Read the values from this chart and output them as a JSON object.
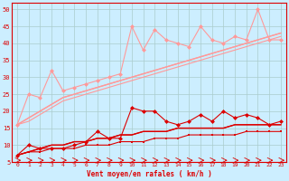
{
  "xlabel": "Vent moyen/en rafales ( km/h )",
  "background_color": "#cceeff",
  "grid_color": "#aacccc",
  "x": [
    0,
    1,
    2,
    3,
    4,
    5,
    6,
    7,
    8,
    9,
    10,
    11,
    12,
    13,
    14,
    15,
    16,
    17,
    18,
    19,
    20,
    21,
    22,
    23
  ],
  "pink_color": "#ff9999",
  "red_color": "#dd0000",
  "line_upper_jagged": [
    16,
    25,
    24,
    32,
    26,
    27,
    28,
    29,
    30,
    31,
    45,
    38,
    44,
    41,
    40,
    39,
    45,
    41,
    40,
    42,
    41,
    50,
    41,
    41
  ],
  "line_upper_smooth1": [
    16,
    18,
    20,
    22,
    24,
    25,
    26,
    27,
    28,
    29,
    30,
    31,
    32,
    33,
    34,
    35,
    36,
    37,
    38,
    39,
    40,
    41,
    42,
    43
  ],
  "line_upper_smooth2": [
    16,
    18,
    20,
    22,
    24,
    25,
    26,
    27,
    28,
    29,
    30,
    31,
    32,
    33,
    34,
    35,
    36,
    37,
    38,
    39,
    40,
    41,
    42,
    43
  ],
  "line_upper_smooth3": [
    16,
    17,
    19,
    21,
    23,
    24,
    25,
    26,
    27,
    28,
    29,
    30,
    31,
    32,
    33,
    34,
    35,
    36,
    37,
    38,
    39,
    40,
    41,
    42
  ],
  "line_lower_jagged": [
    7,
    10,
    9,
    9,
    9,
    10,
    11,
    14,
    12,
    12,
    21,
    20,
    20,
    17,
    16,
    17,
    19,
    17,
    20,
    18,
    19,
    18,
    16,
    17
  ],
  "line_lower_smooth1": [
    7,
    8,
    9,
    10,
    10,
    11,
    11,
    12,
    12,
    13,
    13,
    14,
    14,
    14,
    15,
    15,
    15,
    15,
    15,
    16,
    16,
    16,
    16,
    16
  ],
  "line_lower_smooth2": [
    7,
    8,
    9,
    10,
    10,
    11,
    11,
    12,
    12,
    13,
    13,
    14,
    14,
    14,
    15,
    15,
    15,
    15,
    15,
    16,
    16,
    16,
    16,
    16
  ],
  "line_lower_start": [
    7,
    8,
    8,
    9,
    9,
    9,
    10,
    10,
    10,
    11,
    11,
    11,
    12,
    12,
    12,
    13,
    13,
    13,
    13,
    13,
    14,
    14,
    14,
    14
  ],
  "ylim": [
    5,
    52
  ],
  "ytick_min": 5,
  "ytick_max": 50,
  "ytick_step": 5,
  "xlim": [
    0,
    23
  ]
}
